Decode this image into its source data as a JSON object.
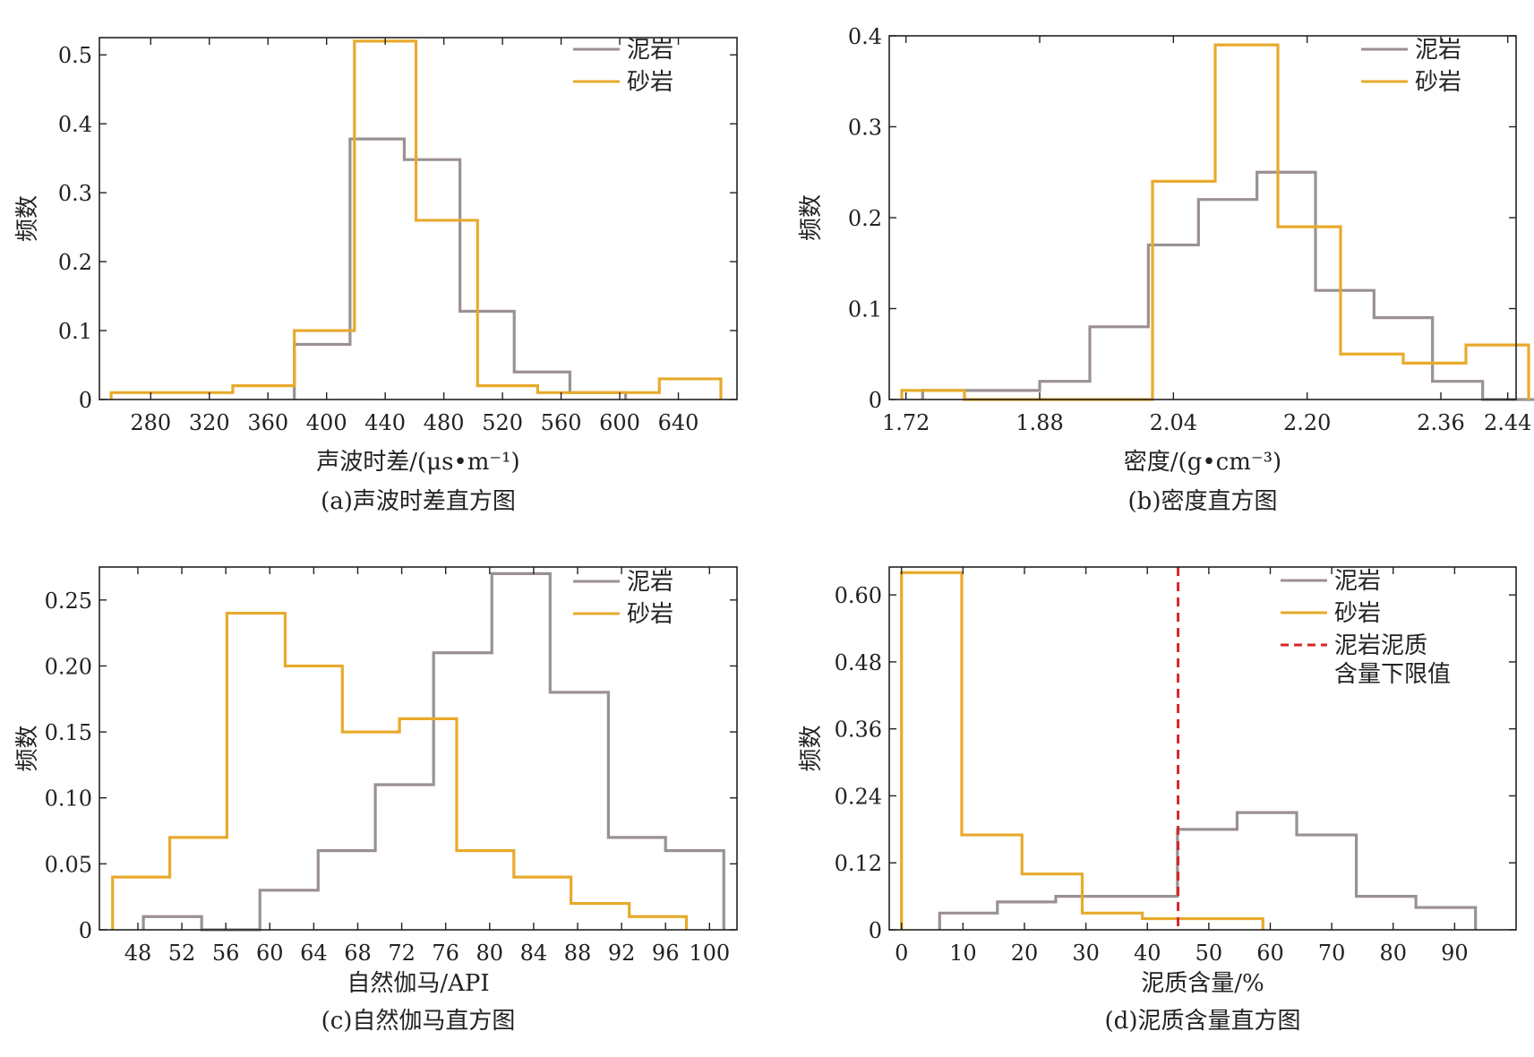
{
  "colors": {
    "mudstone": "#9a9190",
    "sandstone": "#e8aa2c",
    "threshold": "#d62728"
  },
  "chart_data": [
    {
      "id": "a",
      "type": "histogram",
      "caption": "(a)声波时差直方图",
      "xlabel": "声波时差/(μs•m⁻¹)",
      "ylabel": "频数",
      "xlim": [
        245,
        680
      ],
      "ylim": [
        0,
        0.525
      ],
      "xticks": [
        280,
        320,
        360,
        400,
        440,
        480,
        520,
        560,
        600,
        640
      ],
      "yticks": [
        0,
        0.1,
        0.2,
        0.3,
        0.4,
        0.5
      ],
      "ytick_labels": [
        "0",
        "0.1",
        "0.2",
        "0.3",
        "0.4",
        "0.5"
      ],
      "legend": [
        "泥岩",
        "砂岩"
      ],
      "series": [
        {
          "name": "泥岩",
          "color_key": "mudstone",
          "edges": [
            378,
            416,
            453,
            491,
            528,
            566,
            604
          ],
          "values": [
            0.08,
            0.378,
            0.348,
            0.128,
            0.04,
            0.01
          ]
        },
        {
          "name": "砂岩",
          "color_key": "sandstone",
          "edges": [
            253,
            294,
            336,
            378,
            419,
            461,
            503,
            544,
            586,
            627,
            669
          ],
          "values": [
            0.01,
            0.01,
            0.02,
            0.1,
            0.52,
            0.26,
            0.02,
            0.01,
            0.01,
            0.03
          ]
        }
      ]
    },
    {
      "id": "b",
      "type": "histogram",
      "caption": "(b)密度直方图",
      "xlabel": "密度/(g•cm⁻³)",
      "ylabel": "频数",
      "xlim": [
        1.7,
        2.45
      ],
      "ylim": [
        0,
        0.4
      ],
      "xticks": [
        1.72,
        1.88,
        2.04,
        2.2,
        2.36,
        2.44
      ],
      "xtick_labels": [
        "1.72",
        "1.88",
        "2.04",
        "2.20",
        "2.36",
        "2.44"
      ],
      "yticks": [
        0,
        0.1,
        0.2,
        0.3,
        0.4
      ],
      "ytick_labels": [
        "0",
        "0.1",
        "0.2",
        "0.3",
        "0.4"
      ],
      "legend": [
        "泥岩",
        "砂岩"
      ],
      "series": [
        {
          "name": "泥岩",
          "color_key": "mudstone",
          "edges": [
            1.74,
            1.81,
            1.88,
            1.94,
            2.01,
            2.07,
            2.14,
            2.21,
            2.28,
            2.35,
            2.41,
            2.48
          ],
          "values": [
            0.01,
            0.01,
            0.02,
            0.08,
            0.17,
            0.22,
            0.25,
            0.12,
            0.09,
            0.02,
            0.0
          ]
        },
        {
          "name": "砂岩",
          "color_key": "sandstone",
          "edges": [
            1.715,
            1.79,
            1.865,
            1.94,
            2.015,
            2.09,
            2.165,
            2.24,
            2.315,
            2.39,
            2.465
          ],
          "values": [
            0.01,
            0.0,
            0.0,
            0.0,
            0.24,
            0.39,
            0.19,
            0.05,
            0.04,
            0.06
          ]
        }
      ]
    },
    {
      "id": "c",
      "type": "histogram",
      "caption": "(c)自然伽马直方图",
      "xlabel": "自然伽马/API",
      "ylabel": "频数",
      "xlim": [
        44.5,
        102.5
      ],
      "ylim": [
        0,
        0.275
      ],
      "xticks": [
        48,
        52,
        56,
        60,
        64,
        68,
        72,
        76,
        80,
        84,
        88,
        92,
        96,
        100
      ],
      "yticks": [
        0,
        0.05,
        0.1,
        0.15,
        0.2,
        0.25
      ],
      "ytick_labels": [
        "0",
        "0.05",
        "0.10",
        "0.15",
        "0.20",
        "0.25"
      ],
      "legend": [
        "泥岩",
        "砂岩"
      ],
      "series": [
        {
          "name": "泥岩",
          "color_key": "mudstone",
          "edges": [
            48.5,
            53.8,
            59.1,
            64.4,
            69.6,
            74.9,
            80.2,
            85.5,
            90.8,
            96.0,
            101.3
          ],
          "values": [
            0.01,
            0.0,
            0.03,
            0.06,
            0.11,
            0.21,
            0.27,
            0.18,
            0.07,
            0.06
          ]
        },
        {
          "name": "砂岩",
          "color_key": "sandstone",
          "edges": [
            45.7,
            50.9,
            56.1,
            61.4,
            66.6,
            71.8,
            77.0,
            82.2,
            87.4,
            92.7,
            97.9
          ],
          "values": [
            0.04,
            0.07,
            0.24,
            0.2,
            0.15,
            0.16,
            0.06,
            0.04,
            0.02,
            0.01
          ]
        }
      ]
    },
    {
      "id": "d",
      "type": "histogram",
      "caption": "(d)泥质含量直方图",
      "xlabel": "泥质含量/%",
      "ylabel": "频数",
      "xlim": [
        -2,
        100
      ],
      "ylim": [
        0,
        0.65
      ],
      "xticks": [
        0,
        10,
        20,
        30,
        40,
        50,
        60,
        70,
        80,
        90
      ],
      "yticks": [
        0,
        0.12,
        0.24,
        0.36,
        0.48,
        0.6
      ],
      "ytick_labels": [
        "0",
        "0.12",
        "0.24",
        "0.36",
        "0.48",
        "0.60"
      ],
      "legend": [
        "泥岩",
        "砂岩",
        "泥岩泥质含量下限值"
      ],
      "legend_lines": [
        [
          "泥岩"
        ],
        [
          "砂岩"
        ],
        [
          "泥岩泥质",
          "含量下限值"
        ]
      ],
      "threshold_x": 45,
      "series": [
        {
          "name": "泥岩",
          "color_key": "mudstone",
          "edges": [
            6.2,
            15.6,
            25.1,
            34.5,
            44.9,
            54.6,
            64.3,
            74.0,
            83.7,
            93.4
          ],
          "values": [
            0.03,
            0.05,
            0.06,
            0.06,
            0.18,
            0.21,
            0.17,
            0.06,
            0.04
          ]
        },
        {
          "name": "砂岩",
          "color_key": "sandstone",
          "edges": [
            0,
            9.8,
            19.6,
            29.4,
            39.2,
            49.0,
            58.8
          ],
          "values": [
            0.64,
            0.17,
            0.1,
            0.03,
            0.02,
            0.02
          ]
        }
      ]
    }
  ]
}
